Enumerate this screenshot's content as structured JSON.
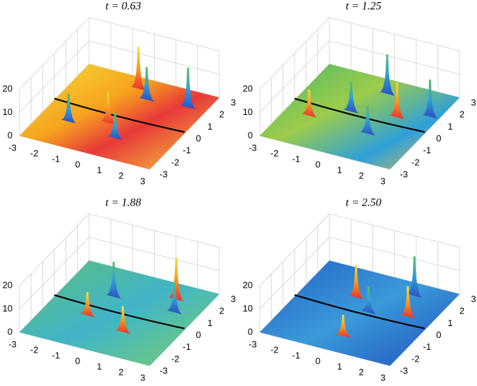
{
  "panels": [
    {
      "title": "t = 0.63"
    },
    {
      "title": "t = 1.25"
    },
    {
      "title": "t = 1.88"
    },
    {
      "title": "t = 2.50"
    }
  ],
  "axes": {
    "xlim": [
      -3,
      3
    ],
    "xticks": [
      -3,
      -2,
      -1,
      0,
      1,
      2,
      3
    ],
    "ylim": [
      -3,
      3
    ],
    "yticks": [
      -3,
      -2,
      -1,
      0,
      1,
      2,
      3
    ],
    "zlim": [
      0,
      20
    ],
    "zticks": [
      0,
      10,
      20
    ]
  }
}
